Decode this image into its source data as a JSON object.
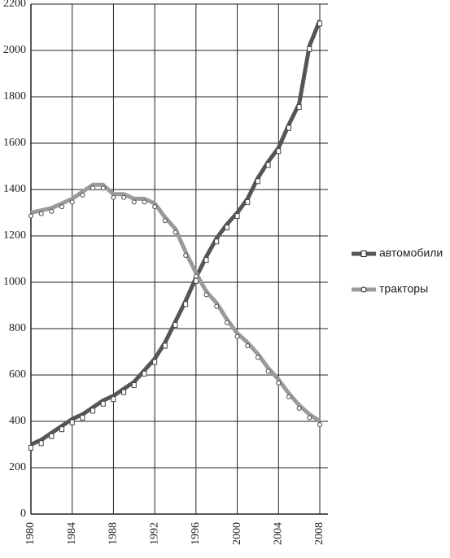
{
  "chart_data": {
    "type": "line",
    "x": [
      1980,
      1981,
      1982,
      1983,
      1984,
      1985,
      1986,
      1987,
      1988,
      1989,
      1990,
      1991,
      1992,
      1993,
      1994,
      1995,
      1996,
      1997,
      1998,
      1999,
      2000,
      2001,
      2002,
      2003,
      2004,
      2005,
      2006,
      2007,
      2008
    ],
    "series": [
      {
        "name": "автомобили",
        "color": "#555555",
        "marker": "square",
        "values": [
          300,
          320,
          350,
          380,
          410,
          430,
          460,
          490,
          510,
          540,
          570,
          620,
          670,
          740,
          830,
          920,
          1020,
          1110,
          1190,
          1250,
          1300,
          1360,
          1450,
          1520,
          1580,
          1680,
          1770,
          2020,
          2130
        ]
      },
      {
        "name": "тракторы",
        "color": "#9a9a9a",
        "marker": "circle",
        "values": [
          1300,
          1310,
          1320,
          1340,
          1360,
          1390,
          1420,
          1420,
          1380,
          1380,
          1360,
          1360,
          1340,
          1280,
          1230,
          1130,
          1040,
          960,
          910,
          840,
          780,
          740,
          690,
          630,
          580,
          520,
          470,
          430,
          400
        ]
      }
    ],
    "xlim": [
      1980,
      2008
    ],
    "xticks": [
      1980,
      1984,
      1988,
      1992,
      1996,
      2000,
      2004,
      2008
    ],
    "ylim": [
      0,
      2200
    ],
    "yticks": [
      0,
      200,
      400,
      600,
      800,
      1000,
      1200,
      1400,
      1600,
      1800,
      2000,
      2200
    ],
    "grid": true,
    "legend": "right"
  }
}
